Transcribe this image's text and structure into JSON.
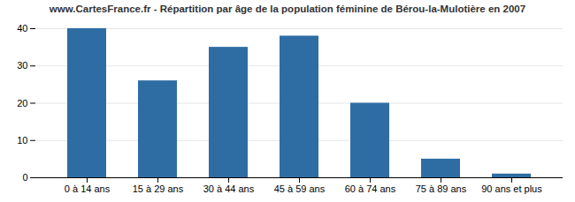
{
  "chart_data": {
    "type": "bar",
    "title": "www.CartesFrance.fr - Répartition par âge de la population féminine de Bérou-la-Mulotière en 2007",
    "categories": [
      "0 à 14 ans",
      "15 à 29 ans",
      "30 à 44 ans",
      "45 à 59 ans",
      "60 à 74 ans",
      "75 à 89 ans",
      "90 ans et plus"
    ],
    "values": [
      40,
      26,
      35,
      38,
      20,
      5,
      1
    ],
    "color": "#2e6da4",
    "ylim": [
      0,
      40
    ],
    "yticks": [
      0,
      10,
      20,
      30,
      40
    ],
    "grid": true
  }
}
